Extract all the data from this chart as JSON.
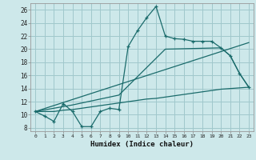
{
  "xlabel": "Humidex (Indice chaleur)",
  "background_color": "#cde8ea",
  "grid_color": "#a0c8cc",
  "line_color": "#1a6b6b",
  "xlim": [
    -0.5,
    23.5
  ],
  "ylim": [
    7.5,
    27.0
  ],
  "xtick_labels": [
    "0",
    "1",
    "2",
    "3",
    "4",
    "5",
    "6",
    "7",
    "8",
    "9",
    "10",
    "11",
    "12",
    "13",
    "14",
    "15",
    "16",
    "17",
    "18",
    "19",
    "20",
    "21",
    "22",
    "23"
  ],
  "ytick_values": [
    8,
    10,
    12,
    14,
    16,
    18,
    20,
    22,
    24,
    26
  ],
  "line1_x": [
    0,
    1,
    2,
    3,
    4,
    5,
    6,
    7,
    8,
    9,
    10,
    11,
    12,
    13,
    14,
    15,
    16,
    17,
    18,
    19,
    20,
    21,
    22,
    23
  ],
  "line1_y": [
    10.5,
    9.8,
    9.0,
    11.7,
    10.5,
    8.2,
    8.2,
    10.5,
    11.0,
    10.8,
    20.4,
    22.8,
    24.8,
    26.5,
    22.0,
    21.6,
    21.5,
    21.2,
    21.2,
    21.2,
    20.2,
    19.0,
    16.3,
    14.2
  ],
  "line2_x": [
    0,
    1,
    2,
    3,
    4,
    5,
    6,
    7,
    8,
    9,
    10,
    11,
    12,
    13,
    14,
    15,
    16,
    17,
    18,
    19,
    20,
    21,
    22,
    23
  ],
  "line2_y": [
    10.5,
    10.5,
    10.5,
    10.7,
    10.8,
    11.0,
    11.2,
    11.4,
    11.6,
    11.8,
    12.0,
    12.2,
    12.4,
    12.5,
    12.7,
    12.9,
    13.1,
    13.3,
    13.5,
    13.7,
    13.9,
    14.0,
    14.1,
    14.2
  ],
  "line3_x": [
    0,
    23
  ],
  "line3_y": [
    10.5,
    21.0
  ],
  "line4_x": [
    0,
    4,
    9,
    14,
    20,
    21,
    22,
    23
  ],
  "line4_y": [
    10.5,
    11.5,
    13.0,
    20.0,
    20.2,
    19.0,
    16.3,
    14.2
  ]
}
